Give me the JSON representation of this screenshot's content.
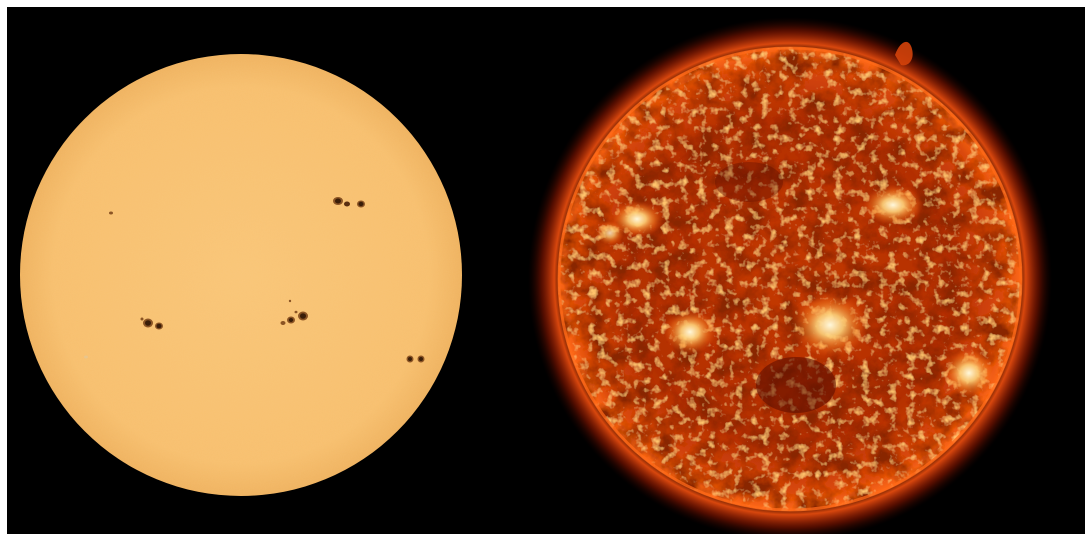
{
  "image": {
    "frame_color": "#ffffff",
    "background_color": "#000000"
  },
  "panels": [
    {
      "name": "visible-light-sun",
      "icon": "sun-disk-icon",
      "colors": {
        "disk": "#f8c170",
        "disk_edge": "#f2b55f",
        "sunspot": "#3a1d08",
        "penumbra": "#8b5424"
      },
      "sunspot_groups": 6
    },
    {
      "name": "extreme-ultraviolet-sun",
      "icon": "sun-corona-icon",
      "colors": {
        "disk": "#c83a06",
        "disk_dark": "#6e1200",
        "active_region": "#fff2c8",
        "limb_glow": "#ff5a10"
      },
      "active_regions": 6
    }
  ]
}
